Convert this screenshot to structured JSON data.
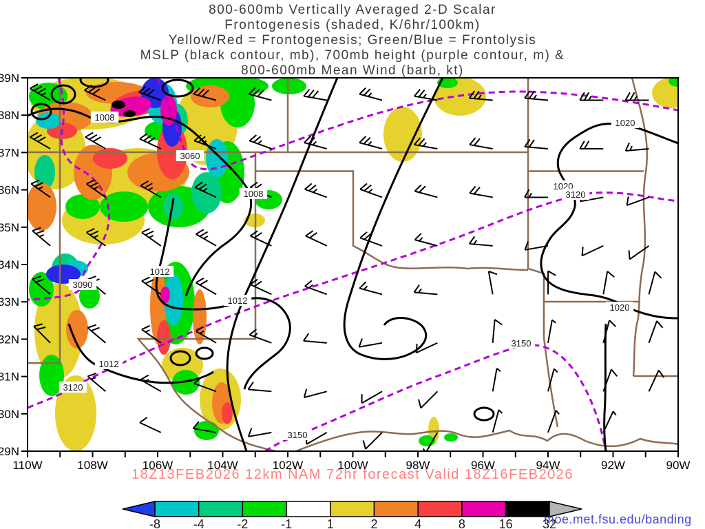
{
  "header": {
    "title_lines": [
      "800-600mb Vertically Averaged 2-D Scalar",
      "Frontogenesis (shaded, K/6hr/100km)",
      "Yellow/Red = Frontogenesis;  Green/Blue = Frontolysis",
      "MSLP (black contour, mb), 700mb height (purple contour, m) &",
      "800-600mb Mean Wind (barb, kt)"
    ]
  },
  "caption": {
    "text": "18Z13FEB2026 12km NAM 72hr forecast Valid 18Z16FEB2026"
  },
  "watermark": {
    "text": "moe.met.fsu.edu/banding"
  },
  "map": {
    "y_axis_labels": [
      "39N",
      "38N",
      "37N",
      "36N",
      "35N",
      "34N",
      "33N",
      "32N",
      "31N",
      "30N",
      "29N"
    ],
    "x_axis_labels": [
      "110W",
      "108W",
      "106W",
      "104W",
      "102W",
      "100W",
      "98W",
      "96W",
      "94W",
      "92W",
      "90W"
    ],
    "contour_labels": [
      "1008",
      "1008",
      "1012",
      "1012",
      "1012",
      "1020",
      "1020",
      "1020",
      "3060",
      "3090",
      "3120",
      "3120",
      "3150",
      "3150"
    ],
    "wind_barbs": [
      [
        109.3,
        38.4,
        300,
        35
      ],
      [
        107.6,
        38.4,
        295,
        30
      ],
      [
        105.9,
        38.4,
        290,
        30
      ],
      [
        104.2,
        38.4,
        285,
        30
      ],
      [
        102.5,
        38.4,
        285,
        30
      ],
      [
        100.8,
        38.4,
        280,
        30
      ],
      [
        99.1,
        38.4,
        285,
        25
      ],
      [
        97.4,
        38.4,
        280,
        25
      ],
      [
        95.7,
        38.4,
        275,
        25
      ],
      [
        94.0,
        38.4,
        275,
        25
      ],
      [
        92.3,
        38.4,
        270,
        25
      ],
      [
        90.9,
        38.4,
        270,
        25
      ],
      [
        109.3,
        37.1,
        300,
        30
      ],
      [
        107.6,
        37.1,
        300,
        30
      ],
      [
        105.9,
        37.1,
        295,
        30
      ],
      [
        104.2,
        37.1,
        290,
        25
      ],
      [
        102.5,
        37.1,
        290,
        25
      ],
      [
        100.8,
        37.1,
        285,
        25
      ],
      [
        99.1,
        37.1,
        285,
        25
      ],
      [
        97.4,
        37.1,
        280,
        25
      ],
      [
        95.7,
        37.1,
        280,
        20
      ],
      [
        94.0,
        37.1,
        275,
        20
      ],
      [
        92.3,
        37.1,
        270,
        20
      ],
      [
        90.9,
        37.1,
        265,
        15
      ],
      [
        109.3,
        35.8,
        305,
        25
      ],
      [
        107.6,
        35.8,
        305,
        25
      ],
      [
        105.9,
        35.8,
        300,
        25
      ],
      [
        104.2,
        35.8,
        295,
        25
      ],
      [
        102.5,
        35.8,
        295,
        25
      ],
      [
        100.8,
        35.8,
        290,
        25
      ],
      [
        99.1,
        35.8,
        290,
        25
      ],
      [
        97.4,
        35.8,
        285,
        20
      ],
      [
        95.7,
        35.8,
        280,
        20
      ],
      [
        94.0,
        35.8,
        270,
        15
      ],
      [
        92.3,
        35.8,
        260,
        15
      ],
      [
        90.9,
        35.8,
        250,
        10
      ],
      [
        109.3,
        34.5,
        310,
        25
      ],
      [
        107.6,
        34.5,
        305,
        25
      ],
      [
        105.9,
        34.5,
        305,
        25
      ],
      [
        104.2,
        34.5,
        300,
        25
      ],
      [
        102.5,
        34.5,
        295,
        20
      ],
      [
        100.8,
        34.5,
        295,
        20
      ],
      [
        99.1,
        34.5,
        290,
        20
      ],
      [
        97.4,
        34.5,
        285,
        15
      ],
      [
        95.7,
        34.5,
        275,
        15
      ],
      [
        94.0,
        34.5,
        260,
        10
      ],
      [
        92.3,
        34.5,
        245,
        10
      ],
      [
        90.9,
        34.5,
        235,
        10
      ],
      [
        109.3,
        33.2,
        310,
        20
      ],
      [
        107.6,
        33.2,
        310,
        20
      ],
      [
        105.9,
        33.2,
        305,
        20
      ],
      [
        104.2,
        33.2,
        300,
        20
      ],
      [
        102.5,
        33.2,
        295,
        20
      ],
      [
        100.8,
        33.2,
        290,
        15
      ],
      [
        99.1,
        33.2,
        285,
        15
      ],
      [
        97.4,
        33.2,
        275,
        15
      ],
      [
        95.7,
        33.2,
        350,
        10
      ],
      [
        94.0,
        33.2,
        0,
        10
      ],
      [
        92.3,
        33.2,
        10,
        10
      ],
      [
        90.9,
        33.2,
        15,
        10
      ],
      [
        109.3,
        31.9,
        315,
        20
      ],
      [
        107.6,
        31.9,
        310,
        20
      ],
      [
        105.9,
        31.9,
        305,
        15
      ],
      [
        104.2,
        31.9,
        300,
        15
      ],
      [
        102.5,
        31.9,
        290,
        15
      ],
      [
        100.8,
        31.9,
        275,
        10
      ],
      [
        99.1,
        31.9,
        260,
        10
      ],
      [
        97.4,
        31.9,
        245,
        10
      ],
      [
        95.7,
        31.9,
        5,
        10
      ],
      [
        94.0,
        31.9,
        10,
        5
      ],
      [
        92.3,
        31.9,
        15,
        10
      ],
      [
        90.9,
        31.9,
        20,
        10
      ],
      [
        107.6,
        30.6,
        310,
        15
      ],
      [
        105.9,
        30.6,
        300,
        15
      ],
      [
        104.2,
        30.6,
        290,
        10
      ],
      [
        102.5,
        30.6,
        275,
        10
      ],
      [
        100.8,
        30.6,
        255,
        10
      ],
      [
        99.1,
        30.6,
        240,
        10
      ],
      [
        97.4,
        30.6,
        225,
        10
      ],
      [
        95.7,
        30.6,
        10,
        5
      ],
      [
        94.0,
        30.6,
        15,
        5
      ],
      [
        92.3,
        30.6,
        20,
        10
      ],
      [
        90.9,
        30.6,
        25,
        10
      ],
      [
        105.9,
        29.5,
        295,
        10
      ],
      [
        104.2,
        29.5,
        280,
        10
      ],
      [
        102.5,
        29.5,
        260,
        10
      ],
      [
        100.8,
        29.5,
        240,
        10
      ],
      [
        99.1,
        29.5,
        225,
        10
      ],
      [
        97.4,
        29.5,
        210,
        5
      ],
      [
        95.7,
        29.5,
        15,
        5
      ],
      [
        94.0,
        29.5,
        20,
        5
      ],
      [
        92.3,
        29.5,
        25,
        5
      ]
    ]
  },
  "colorbar": {
    "tick_labels": [
      "-8",
      "-4",
      "-2",
      "-1",
      "1",
      "2",
      "4",
      "8",
      "16",
      "32"
    ],
    "segment_colors": [
      "#00c8c8",
      "#00cd7f",
      "#00dc00",
      "#ffffff",
      "#e6d22d",
      "#f08228",
      "#f84040",
      "#ea00aa",
      "#000000"
    ],
    "left_arrow_color": "#1e3cf0",
    "right_arrow_color": "#b4b4b4"
  },
  "colors": {
    "mslp_contour": "#000000",
    "height_contour": "#b400d8",
    "state_border": "#8f6b53",
    "caption_text": "#ff8080",
    "watermark_text": "#4848d2"
  }
}
